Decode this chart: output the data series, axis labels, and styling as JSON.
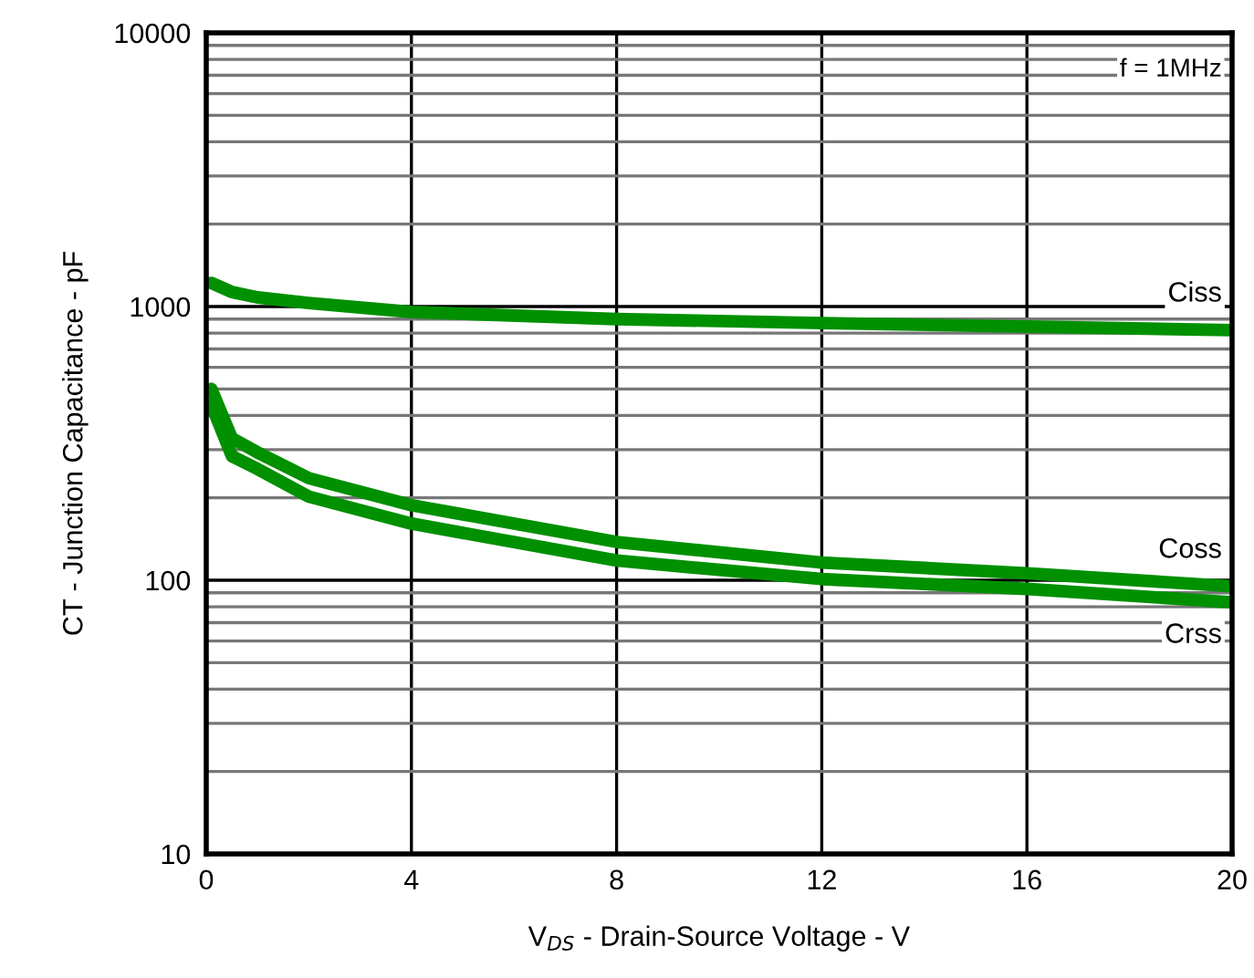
{
  "chart_data": {
    "type": "line",
    "xlabel": "V$_{DS}$ - Drain-Source Voltage - V",
    "ylabel": "CT - Junction Capacitance - pF",
    "log": "y",
    "xlim": [
      0,
      20
    ],
    "ylim": [
      10,
      10000
    ],
    "xticks": [
      0,
      4,
      8,
      12,
      16,
      20
    ],
    "yticks": [
      10,
      100,
      1000,
      10000
    ],
    "grid": true,
    "marker": "none",
    "line_style": "solid",
    "annotations": [
      "f = 1MHz"
    ],
    "x": [
      0.1,
      0.5,
      1,
      2,
      4,
      8,
      12,
      16,
      20
    ],
    "series": [
      {
        "name": "Ciss",
        "color": "#009000",
        "values": [
          1220,
          1130,
          1080,
          1030,
          955,
          900,
          870,
          845,
          820
        ]
      },
      {
        "name": "Coss",
        "color": "#009000",
        "values": [
          500,
          330,
          293,
          236,
          188,
          138,
          116,
          106,
          95
        ]
      },
      {
        "name": "Crss",
        "color": "#009000",
        "values": [
          437,
          284,
          255,
          202,
          161,
          118,
          101,
          93,
          83
        ]
      }
    ]
  }
}
